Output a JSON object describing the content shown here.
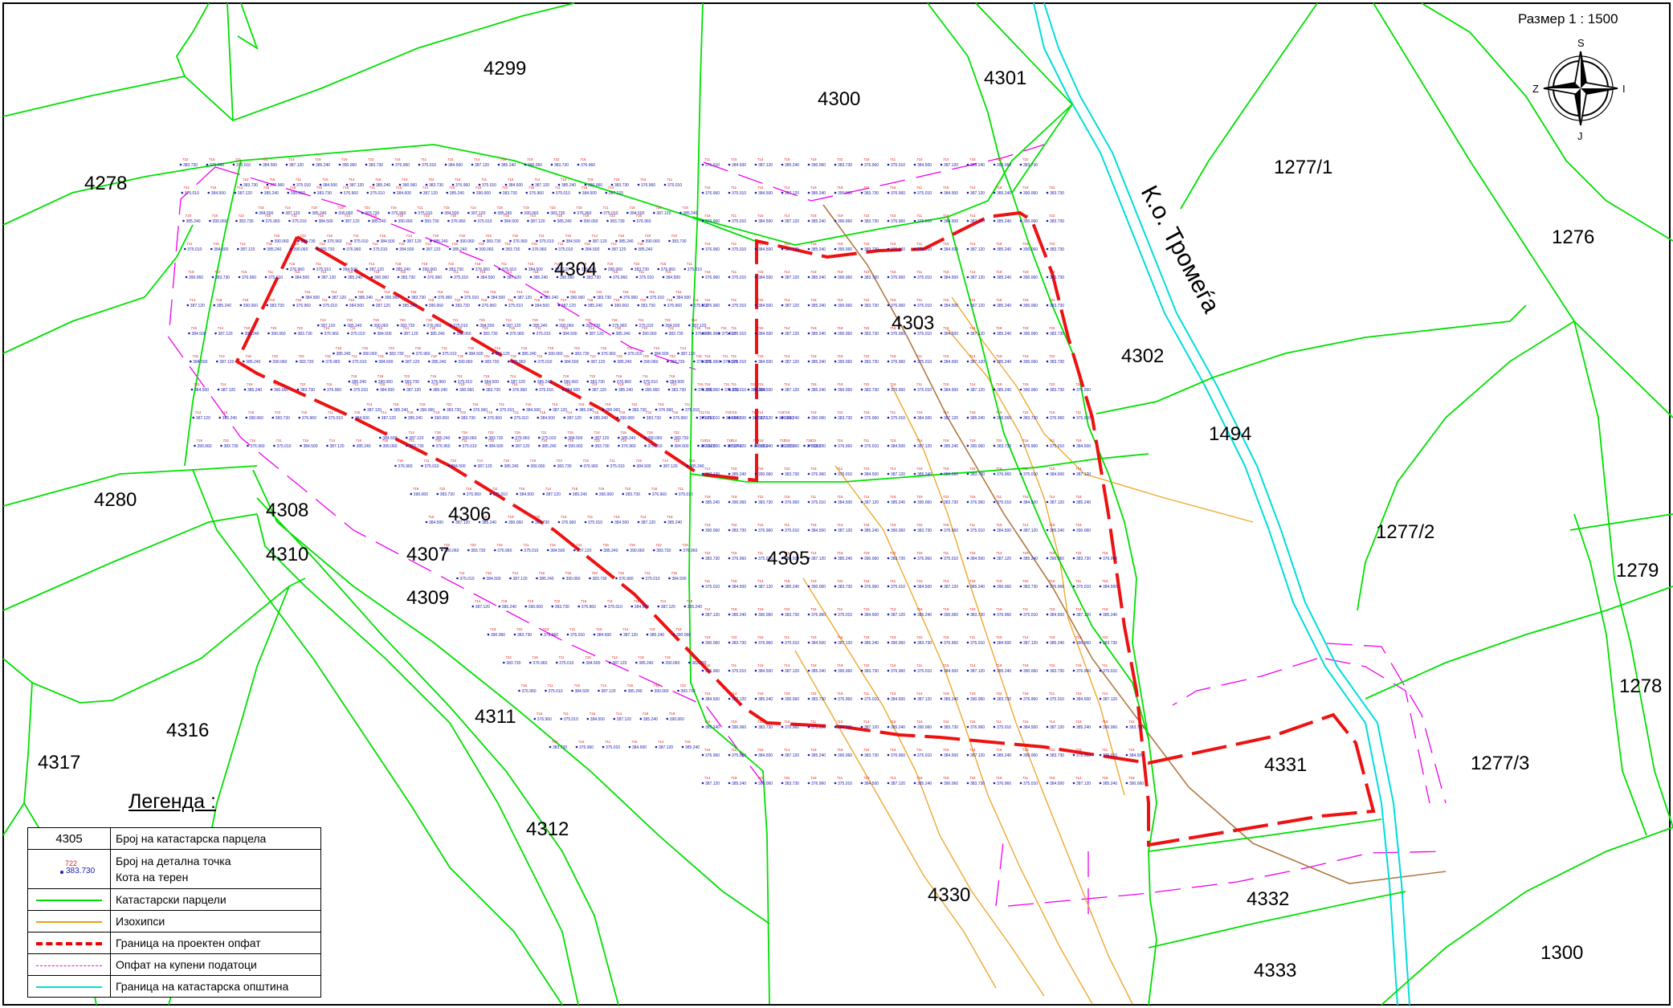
{
  "scale": "Размер 1 : 1500",
  "municipality_label": "К.о. Тромеѓа",
  "compass": {
    "north": "S",
    "south": "J",
    "west": "Z",
    "east": "I"
  },
  "parcels": [
    {
      "id": "4299"
    },
    {
      "id": "4300"
    },
    {
      "id": "4301"
    },
    {
      "id": "1277/1"
    },
    {
      "id": "4278"
    },
    {
      "id": "1276"
    },
    {
      "id": "4304"
    },
    {
      "id": "4303"
    },
    {
      "id": "4302"
    },
    {
      "id": "1494"
    },
    {
      "id": "4280"
    },
    {
      "id": "4308"
    },
    {
      "id": "4306"
    },
    {
      "id": "1277/2"
    },
    {
      "id": "4310"
    },
    {
      "id": "4307"
    },
    {
      "id": "4305"
    },
    {
      "id": "1279"
    },
    {
      "id": "4309"
    },
    {
      "id": "1278"
    },
    {
      "id": "4311"
    },
    {
      "id": "4316"
    },
    {
      "id": "4317"
    },
    {
      "id": "4331"
    },
    {
      "id": "1277/3"
    },
    {
      "id": "4312"
    },
    {
      "id": "4332"
    },
    {
      "id": "4330"
    },
    {
      "id": "1300"
    },
    {
      "id": "4333"
    }
  ],
  "sample_points": [
    {
      "num": "722",
      "elev": "383.730"
    },
    {
      "num": "716",
      "elev": "376.960"
    },
    {
      "num": "711",
      "elev": "375.010"
    },
    {
      "num": "715",
      "elev": "384.500"
    },
    {
      "num": "714",
      "elev": "387.120"
    },
    {
      "num": "718",
      "elev": "385.240"
    },
    {
      "num": "719",
      "elev": "390.060"
    }
  ],
  "legend": {
    "title": "Легенда :",
    "items": [
      {
        "symbol": "parcel-number",
        "symbol_text": "4305",
        "label": "Број на катастарска парцела"
      },
      {
        "symbol": "point",
        "symbol_text": "722",
        "symbol_value": "383.730",
        "label": "Број на детална точка",
        "label2": "Кота на терен"
      },
      {
        "symbol": "green-line",
        "label": "Катастарски парцели",
        "color": "#00dd00"
      },
      {
        "symbol": "orange-line",
        "label": "Изохипси",
        "color": "#e8a020"
      },
      {
        "symbol": "red-dashed",
        "label": "Граница на проектен опфат",
        "color": "#ee0000"
      },
      {
        "symbol": "magenta-dashed",
        "label": "Опфат на купени податоци",
        "color": "#ee00ee"
      },
      {
        "symbol": "cyan-line",
        "label": "Граница на катастарска општина",
        "color": "#00dddd"
      }
    ]
  }
}
